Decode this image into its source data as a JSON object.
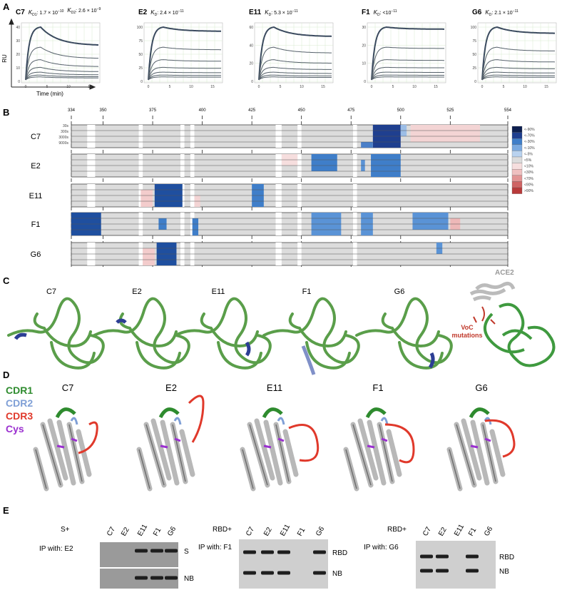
{
  "panels": {
    "a": "A",
    "b": "B",
    "c": "C",
    "d": "D",
    "e": "E"
  },
  "spr": {
    "y_axis": "RU",
    "x_axis": "Time (min)",
    "plots": [
      {
        "name": "C7",
        "kd": [
          {
            "k": "K",
            "sub": "D1",
            "val": ": 1.7 × 10",
            "exp": "−10"
          },
          {
            "k": "K",
            "sub": "D2",
            "val": ": 2.6 × 10",
            "exp": "−9"
          }
        ],
        "yticks": [
          "40",
          "30",
          "20",
          "10",
          "0"
        ],
        "xticks": [
          "0",
          "5",
          "10",
          "15"
        ]
      },
      {
        "name": "E2",
        "kd": [
          {
            "k": "K",
            "sub": "D",
            "val": ": 2.4 × 10",
            "exp": "−11"
          }
        ],
        "yticks": [
          "100",
          "75",
          "50",
          "25",
          "0"
        ],
        "xticks": [
          "0",
          "5",
          "10",
          "15"
        ]
      },
      {
        "name": "E11",
        "kd": [
          {
            "k": "K",
            "sub": "D",
            "val": ": 5.3 × 10",
            "exp": "−11"
          }
        ],
        "yticks": [
          "60",
          "40",
          "20",
          "0"
        ],
        "xticks": [
          "0",
          "5",
          "10",
          "15"
        ]
      },
      {
        "name": "F1",
        "kd": [
          {
            "k": "K",
            "sub": "D",
            "val": ": <10",
            "exp": "−11"
          }
        ],
        "yticks": [
          "30",
          "20",
          "10",
          "0"
        ],
        "xticks": [
          "0",
          "5",
          "10",
          "15"
        ]
      },
      {
        "name": "G6",
        "kd": [
          {
            "k": "K",
            "sub": "D",
            "val": ": 2.1 × 10",
            "exp": "−11"
          }
        ],
        "yticks": [
          "100",
          "75",
          "50",
          "25",
          "0"
        ],
        "xticks": [
          "0",
          "5",
          "10",
          "15"
        ]
      }
    ]
  },
  "hdx": {
    "residues": [
      "334",
      "350",
      "375",
      "400",
      "425",
      "450",
      "475",
      "500",
      "525",
      "554"
    ],
    "rows": [
      "C7",
      "E2",
      "E11",
      "F1",
      "G6"
    ],
    "times": [
      "30s",
      "300s",
      "3000s",
      "9000s"
    ],
    "legend": [
      "<-90%",
      "<-70%",
      "<-30%",
      "<-10%",
      "<-5%",
      "<5%",
      "<10%",
      "<30%",
      "<70%",
      "<90%",
      ">90%"
    ]
  },
  "structures": {
    "labels": [
      "C7",
      "E2",
      "E11",
      "F1",
      "G6"
    ],
    "ace2": "ACE2",
    "voc": [
      "VoC",
      "mutations"
    ]
  },
  "cdr": {
    "legend": [
      "CDR1",
      "CDR2",
      "CDR3",
      "Cys"
    ],
    "labels": [
      "C7",
      "E2",
      "E11",
      "F1",
      "G6"
    ]
  },
  "gels": [
    {
      "prefix": "S+",
      "ip": "IP with: E2",
      "lanes": [
        "C7",
        "E2",
        "E11",
        "F1",
        "G6"
      ],
      "bands": [
        "S",
        "NB"
      ]
    },
    {
      "prefix": "RBD+",
      "ip": "IP with: F1",
      "lanes": [
        "C7",
        "E2",
        "E11",
        "F1",
        "G6"
      ],
      "bands": [
        "RBD",
        "NB"
      ]
    },
    {
      "prefix": "RBD+",
      "ip": "IP with: G6",
      "lanes": [
        "C7",
        "E2",
        "E11",
        "F1",
        "G6"
      ],
      "bands": [
        "RBD",
        "NB"
      ]
    }
  ]
}
